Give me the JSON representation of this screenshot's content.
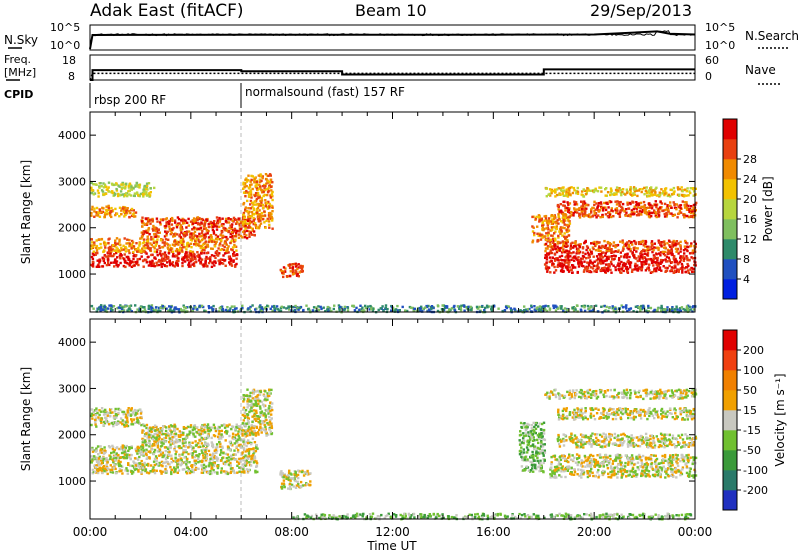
{
  "header": {
    "station": "Adak East (fitACF)",
    "beam": "Beam 10",
    "date": "29/Sep/2013"
  },
  "noise_panel": {
    "left_label": "N.Sky",
    "right_label": "N.Search",
    "left_ticks": [
      "10^5",
      "10^0"
    ],
    "right_ticks": [
      "10^5",
      "10^0"
    ]
  },
  "freq_panel": {
    "left_label": [
      "Freq.",
      "[MHz]"
    ],
    "right_label": "Nave",
    "left_ticks": [
      "18",
      "8"
    ],
    "right_ticks": [
      "60",
      "0"
    ]
  },
  "cpid_panel": {
    "label": "CPID",
    "segments": [
      {
        "name": "rbsp 200 RF",
        "start_hour": 0,
        "end_hour": 6
      },
      {
        "name": "normalsound (fast) 157 RF",
        "start_hour": 6,
        "end_hour": 24
      }
    ]
  },
  "x_axis": {
    "label": "Time UT",
    "tick_labels": [
      "00:00",
      "04:00",
      "08:00",
      "12:00",
      "16:00",
      "20:00",
      "00:00"
    ]
  },
  "y_axis": {
    "label": "Slant Range [km]",
    "tick_labels": [
      "1000",
      "2000",
      "3000",
      "4000"
    ]
  },
  "power_colorbar": {
    "label": "Power [dB]",
    "tick_labels": [
      "28",
      "24",
      "20",
      "16",
      "12",
      "8",
      "4"
    ],
    "colors": [
      "#0020e0",
      "#2050c0",
      "#2e8a6a",
      "#7fbf5f",
      "#b7d63e",
      "#f2c200",
      "#f08a00",
      "#e84010",
      "#e00000"
    ]
  },
  "velocity_colorbar": {
    "label": "Velocity [m s⁻¹]",
    "tick_labels": [
      "200",
      "100",
      "50",
      "15",
      "-15",
      "-50",
      "-100",
      "-200"
    ],
    "colors": [
      "#2030c0",
      "#2a7a6a",
      "#3a9a3a",
      "#70c030",
      "#c8c8c0",
      "#f0a000",
      "#f08000",
      "#f04010",
      "#e00000"
    ]
  },
  "chart_data": [
    {
      "type": "line",
      "title": "N.Sky / N.Search",
      "x": [
        0,
        0.1,
        6,
        12,
        16,
        20,
        22.5,
        23,
        24
      ],
      "series": [
        {
          "name": "N.Sky",
          "values": [
            1,
            1500,
            1800,
            1700,
            1800,
            2000,
            10000,
            3000,
            2000
          ]
        }
      ]
    },
    {
      "type": "line",
      "title": "Freq. / Nave",
      "x": [
        0,
        0.1,
        6,
        10,
        18,
        24
      ],
      "series": [
        {
          "name": "Freq.",
          "values": [
            8,
            12.5,
            12,
            10.5,
            12.8,
            12.8
          ]
        },
        {
          "name": "Nave",
          "values": [
            0,
            18,
            18,
            18,
            18,
            18
          ]
        }
      ]
    },
    {
      "type": "heatmap",
      "title": "Power",
      "xlim": [
        0,
        24
      ],
      "ylim": [
        180,
        4500
      ],
      "bands": [
        {
          "x0": 0.0,
          "x1": 5.8,
          "r0": 1180,
          "r1": 1500,
          "level": 8
        },
        {
          "x0": 0.0,
          "x1": 5.8,
          "r0": 1500,
          "r1": 1800,
          "level": 6
        },
        {
          "x0": 2.0,
          "x1": 6.5,
          "r0": 1800,
          "r1": 2250,
          "level": 7
        },
        {
          "x0": 0.0,
          "x1": 1.8,
          "r0": 2250,
          "r1": 2500,
          "level": 6
        },
        {
          "x0": 0.0,
          "x1": 2.5,
          "r0": 2700,
          "r1": 3000,
          "level": 4
        },
        {
          "x0": 6.0,
          "x1": 7.2,
          "r0": 2000,
          "r1": 3200,
          "level": 6
        },
        {
          "x0": 7.5,
          "x1": 8.4,
          "r0": 950,
          "r1": 1250,
          "level": 7
        },
        {
          "x0": 18.0,
          "x1": 24.0,
          "r0": 1050,
          "r1": 1500,
          "level": 8
        },
        {
          "x0": 18.0,
          "x1": 24.0,
          "r0": 1500,
          "r1": 1750,
          "level": 7
        },
        {
          "x0": 18.5,
          "x1": 24.0,
          "r0": 2250,
          "r1": 2600,
          "level": 7
        },
        {
          "x0": 18.0,
          "x1": 24.0,
          "r0": 2700,
          "r1": 2900,
          "level": 5
        },
        {
          "x0": 17.5,
          "x1": 19.0,
          "r0": 1700,
          "r1": 2300,
          "level": 6
        },
        {
          "x0": 0.0,
          "x1": 24.0,
          "r0": 200,
          "r1": 350,
          "level": 2
        }
      ]
    },
    {
      "type": "heatmap",
      "title": "Velocity",
      "xlim": [
        0,
        24
      ],
      "ylim": [
        180,
        4500
      ],
      "bands": [
        {
          "x0": 0.0,
          "x1": 6.6,
          "r0": 1180,
          "r1": 1800,
          "level": 4
        },
        {
          "x0": 2.0,
          "x1": 6.5,
          "r0": 1800,
          "r1": 2250,
          "level": 4
        },
        {
          "x0": 0.0,
          "x1": 2.0,
          "r0": 2200,
          "r1": 2600,
          "level": 4
        },
        {
          "x0": 6.0,
          "x1": 7.2,
          "r0": 2000,
          "r1": 3000,
          "level": 4
        },
        {
          "x0": 7.5,
          "x1": 8.7,
          "r0": 850,
          "r1": 1250,
          "level": 4
        },
        {
          "x0": 17.0,
          "x1": 18.0,
          "r0": 1200,
          "r1": 2300,
          "level": 3
        },
        {
          "x0": 18.2,
          "x1": 24.0,
          "r0": 1100,
          "r1": 1600,
          "level": 4
        },
        {
          "x0": 18.5,
          "x1": 24.0,
          "r0": 1750,
          "r1": 2050,
          "level": 4
        },
        {
          "x0": 18.5,
          "x1": 24.0,
          "r0": 2350,
          "r1": 2600,
          "level": 4
        },
        {
          "x0": 18.0,
          "x1": 24.0,
          "r0": 2800,
          "r1": 3000,
          "level": 4
        },
        {
          "x0": 8.0,
          "x1": 24.0,
          "r0": 200,
          "r1": 320,
          "level": 3
        }
      ]
    }
  ]
}
